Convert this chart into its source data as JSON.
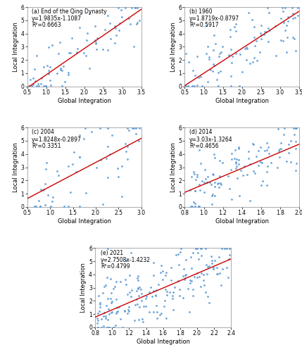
{
  "subplots": [
    {
      "label": "(a) End of the Qing Dynasty",
      "equation": "y=1.9835x-1.1087",
      "r2": "R²=0.6663",
      "slope": 1.9835,
      "intercept": -1.1087,
      "xlim": [
        0.5,
        3.5
      ],
      "ylim": [
        0,
        6
      ],
      "xticks": [
        0.5,
        1.0,
        1.5,
        2.0,
        2.5,
        3.0,
        3.5
      ],
      "yticks": [
        0,
        1,
        2,
        3,
        4,
        5,
        6
      ],
      "seed": 42,
      "n_points": 80
    },
    {
      "label": "(b) 1960",
      "equation": "y=1.8719x-0.8797",
      "r2": "R²=0.5917",
      "slope": 1.8719,
      "intercept": -0.8797,
      "xlim": [
        0.5,
        3.5
      ],
      "ylim": [
        0,
        6
      ],
      "xticks": [
        0.5,
        1.0,
        1.5,
        2.0,
        2.5,
        3.0,
        3.5
      ],
      "yticks": [
        0,
        1,
        2,
        3,
        4,
        5,
        6
      ],
      "seed": 43,
      "n_points": 100
    },
    {
      "label": "(c) 2004",
      "equation": "y=1.8248x-0.2897",
      "r2": "R²=0.3351",
      "slope": 1.8248,
      "intercept": -0.2897,
      "xlim": [
        0.5,
        3.0
      ],
      "ylim": [
        0,
        6
      ],
      "xticks": [
        0.5,
        1.0,
        1.5,
        2.0,
        2.5,
        3.0
      ],
      "yticks": [
        0,
        1,
        2,
        3,
        4,
        5,
        6
      ],
      "seed": 44,
      "n_points": 60
    },
    {
      "label": "(d) 2014",
      "equation": "y=3.03x-1.3264",
      "r2": "R²=0.4656",
      "slope": 3.03,
      "intercept": -1.3264,
      "xlim": [
        0.8,
        2.0
      ],
      "ylim": [
        0,
        6
      ],
      "xticks": [
        0.8,
        1.0,
        1.2,
        1.4,
        1.6,
        1.8,
        2.0
      ],
      "yticks": [
        0,
        1,
        2,
        3,
        4,
        5,
        6
      ],
      "seed": 45,
      "n_points": 120
    },
    {
      "label": "(e) 2021",
      "equation": "y=2.7508x-1.4232",
      "r2": "R²=0.4799",
      "slope": 2.7508,
      "intercept": -1.4232,
      "xlim": [
        0.8,
        2.4
      ],
      "ylim": [
        0,
        6
      ],
      "xticks": [
        0.8,
        1.0,
        1.2,
        1.4,
        1.6,
        1.8,
        2.0,
        2.2,
        2.4
      ],
      "yticks": [
        0,
        1,
        2,
        3,
        4,
        5,
        6
      ],
      "seed": 46,
      "n_points": 200
    }
  ],
  "dot_color": "#5B9BD5",
  "line_color": "#CC0000",
  "xlabel": "Global Integration",
  "ylabel": "Local Integration",
  "background_color": "#ffffff",
  "text_color": "#000000",
  "annotation_fontsize": 5.5,
  "label_fontsize": 6.0,
  "tick_fontsize": 5.5
}
